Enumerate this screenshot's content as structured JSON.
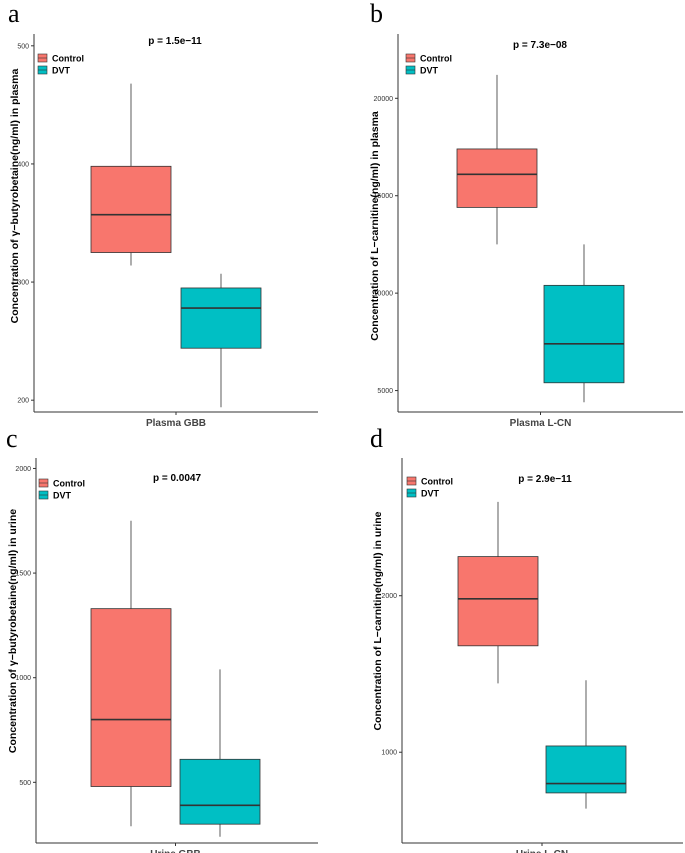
{
  "colors": {
    "control": "#F8766D",
    "dvt": "#00BFC4",
    "axis": "#333333"
  },
  "legend": {
    "entries": [
      "Control",
      "DVT"
    ]
  },
  "chart_data": [
    {
      "panel": "a",
      "type": "boxplot",
      "pvalue": "p = 1.5e−11",
      "xlabel": "Plasma GBB",
      "ylabel": "Concentration of γ−butyrobetaine(ng/ml) in plasma",
      "ylim": [
        190,
        510
      ],
      "ticks": [
        200,
        300,
        400,
        500
      ],
      "tick_labels": [
        "200",
        "300",
        "400",
        "500"
      ],
      "series": [
        {
          "name": "Control",
          "min": 314,
          "q1": 325,
          "median": 357,
          "q3": 398,
          "max": 468
        },
        {
          "name": "DVT",
          "min": 194,
          "q1": 244,
          "median": 278,
          "q3": 295,
          "max": 307
        }
      ]
    },
    {
      "panel": "b",
      "type": "boxplot",
      "pvalue": "p = 7.3e−08",
      "xlabel": "Plasma L-CN",
      "ylabel": "Concentration of L−carnitine(ng/ml) in plasma",
      "ylim": [
        3900,
        23300
      ],
      "ticks": [
        5000,
        10000,
        15000,
        20000
      ],
      "tick_labels": [
        "5000",
        "10000",
        "15000",
        "20000"
      ],
      "series": [
        {
          "name": "Control",
          "min": 12500,
          "q1": 14400,
          "median": 16100,
          "q3": 17400,
          "max": 21200
        },
        {
          "name": "DVT",
          "min": 4400,
          "q1": 5400,
          "median": 7400,
          "q3": 10400,
          "max": 12500
        }
      ]
    },
    {
      "panel": "c",
      "type": "boxplot",
      "pvalue": "p = 0.0047",
      "xlabel": "Urine GBB",
      "ylabel": "Concentration of γ−butyrobetaine(ng/ml) in urine",
      "ylim": [
        210,
        2050
      ],
      "ticks": [
        500,
        1000,
        1500,
        2000
      ],
      "tick_labels": [
        "500",
        "1000",
        "1500",
        "2000"
      ],
      "series": [
        {
          "name": "Control",
          "min": 290,
          "q1": 480,
          "median": 800,
          "q3": 1330,
          "max": 1750
        },
        {
          "name": "DVT",
          "min": 240,
          "q1": 300,
          "median": 390,
          "q3": 610,
          "max": 1040
        }
      ]
    },
    {
      "panel": "d",
      "type": "boxplot",
      "pvalue": "p = 2.9e−11",
      "xlabel": "Urine L-CN",
      "ylabel": "Concentration of L−carnitine(ng/ml) in urine",
      "ylim": [
        420,
        2880
      ],
      "ticks": [
        1000,
        2000
      ],
      "tick_labels": [
        "1000",
        "2000"
      ],
      "series": [
        {
          "name": "Control",
          "min": 1440,
          "q1": 1680,
          "median": 1980,
          "q3": 2250,
          "max": 2600
        },
        {
          "name": "DVT",
          "min": 640,
          "q1": 740,
          "median": 800,
          "q3": 1040,
          "max": 1460
        }
      ]
    }
  ]
}
